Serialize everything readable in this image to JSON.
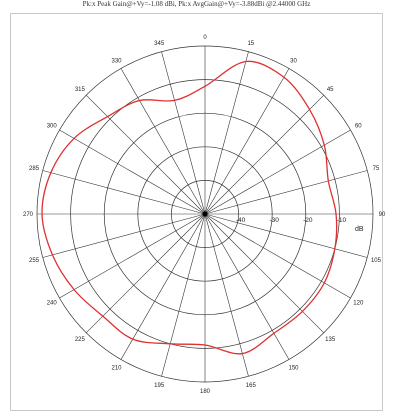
{
  "chart_data": {
    "type": "polar",
    "title": "Pk:x Peak Gain@+Vy=-1.08 dBi, Pk:x AvgGain@+Vy=-3.88dBi @2.44000 GHz",
    "radial_unit": "dB",
    "radial_ticks": [
      "-40",
      "-30",
      "-20",
      "-10"
    ],
    "r_range": [
      -50,
      0
    ],
    "angle_ticks": [
      "0",
      "15",
      "30",
      "45",
      "60",
      "75",
      "90",
      "105",
      "120",
      "135",
      "150",
      "165",
      "180",
      "195",
      "210",
      "225",
      "240",
      "255",
      "270",
      "285",
      "300",
      "315",
      "330",
      "345"
    ],
    "angle_direction": "clockwise",
    "zero_at": "top",
    "line_color": "#e03030",
    "series": [
      {
        "angles": [
          0,
          15,
          30,
          45,
          60,
          75,
          90,
          105,
          120,
          135,
          150,
          165,
          180,
          195,
          210,
          225,
          240,
          255,
          270,
          285,
          300,
          315,
          330,
          345
        ],
        "values": [
          -12,
          -3,
          -3,
          -6,
          -9,
          -12,
          -11,
          -10,
          -9,
          -9,
          -9,
          -7,
          -11,
          -10,
          -7,
          -7,
          -5,
          -3,
          -1.5,
          -2.5,
          -5,
          -9,
          -11,
          -15
        ]
      }
    ]
  }
}
